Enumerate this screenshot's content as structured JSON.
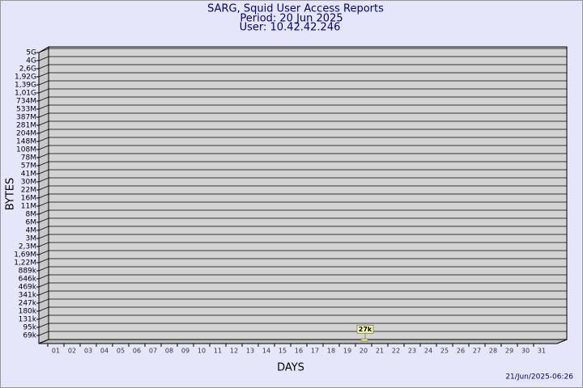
{
  "chart_data": {
    "type": "bar",
    "title": "SARG, Squid User Access Reports",
    "subtitle": "Period: 20 Jun 2025",
    "user": "User: 10.42.42.246",
    "y_label": "BYTES",
    "x_label": "DAYS",
    "footer": "21/Jun/2025-06:26",
    "categories": [
      "01",
      "02",
      "03",
      "04",
      "05",
      "06",
      "07",
      "08",
      "09",
      "10",
      "11",
      "12",
      "13",
      "14",
      "15",
      "16",
      "17",
      "18",
      "19",
      "20",
      "21",
      "22",
      "23",
      "24",
      "25",
      "26",
      "27",
      "28",
      "29",
      "30",
      "31"
    ],
    "values": [
      null,
      null,
      null,
      null,
      null,
      null,
      null,
      null,
      null,
      null,
      null,
      null,
      null,
      null,
      null,
      null,
      null,
      null,
      null,
      27000,
      null,
      null,
      null,
      null,
      null,
      null,
      null,
      null,
      null,
      null,
      null
    ],
    "value_labels": [
      null,
      null,
      null,
      null,
      null,
      null,
      null,
      null,
      null,
      null,
      null,
      null,
      null,
      null,
      null,
      null,
      null,
      null,
      null,
      "27k",
      null,
      null,
      null,
      null,
      null,
      null,
      null,
      null,
      null,
      null,
      null
    ],
    "color": "#ffff66",
    "ylim": [
      0,
      5000000000
    ],
    "yticks": [
      {
        "value": 69000,
        "label": "69k"
      },
      {
        "value": 95000,
        "label": "95k"
      },
      {
        "value": 131000,
        "label": "131k"
      },
      {
        "value": 180000,
        "label": "180k"
      },
      {
        "value": 247000,
        "label": "247k"
      },
      {
        "value": 341000,
        "label": "341k"
      },
      {
        "value": 469000,
        "label": "469k"
      },
      {
        "value": 646000,
        "label": "646k"
      },
      {
        "value": 889000,
        "label": "889k"
      },
      {
        "value": 1220000,
        "label": "1,22M"
      },
      {
        "value": 1690000,
        "label": "1,69M"
      },
      {
        "value": 2300000,
        "label": "2,3M"
      },
      {
        "value": 3000000,
        "label": "3M"
      },
      {
        "value": 4000000,
        "label": "4M"
      },
      {
        "value": 6000000,
        "label": "6M"
      },
      {
        "value": 8000000,
        "label": "8M"
      },
      {
        "value": 11000000,
        "label": "11M"
      },
      {
        "value": 16000000,
        "label": "16M"
      },
      {
        "value": 22000000,
        "label": "22M"
      },
      {
        "value": 30000000,
        "label": "30M"
      },
      {
        "value": 41000000,
        "label": "41M"
      },
      {
        "value": 57000000,
        "label": "57M"
      },
      {
        "value": 78000000,
        "label": "78M"
      },
      {
        "value": 108000000,
        "label": "108M"
      },
      {
        "value": 148000000,
        "label": "148M"
      },
      {
        "value": 204000000,
        "label": "204M"
      },
      {
        "value": 281000000,
        "label": "281M"
      },
      {
        "value": 387000000,
        "label": "387M"
      },
      {
        "value": 533000000,
        "label": "533M"
      },
      {
        "value": 734000000,
        "label": "734M"
      },
      {
        "value": 1010000000,
        "label": "1,01G"
      },
      {
        "value": 1390000000,
        "label": "1,39G"
      },
      {
        "value": 1920000000,
        "label": "1,92G"
      },
      {
        "value": 2600000000,
        "label": "2,6G"
      },
      {
        "value": 4000000000,
        "label": "4G"
      },
      {
        "value": 5000000000,
        "label": "5G"
      }
    ],
    "grid": true
  }
}
